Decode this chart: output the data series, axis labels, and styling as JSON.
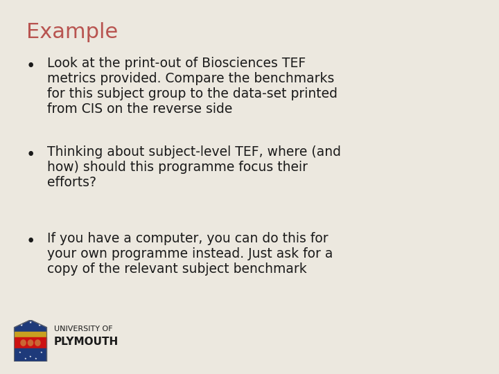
{
  "background_color": "#ece8df",
  "title": "Example",
  "title_color": "#b85450",
  "title_fontsize": 22,
  "body_color": "#1a1a1a",
  "body_fontsize": 13.5,
  "bullets": [
    "Look at the print-out of Biosciences TEF\nmetrics provided. Compare the benchmarks\nfor this subject group to the data-set printed\nfrom CIS on the reverse side",
    "Thinking about subject-level TEF, where (and\nhow) should this programme focus their\nefforts?",
    "If you have a computer, you can do this for\nyour own programme instead. Just ask for a\ncopy of the relevant subject benchmark"
  ],
  "logo_text_line1": "UNIVERSITY OF",
  "logo_text_line2": "PLYMOUTH",
  "logo_fontsize1": 8,
  "logo_fontsize2": 11
}
